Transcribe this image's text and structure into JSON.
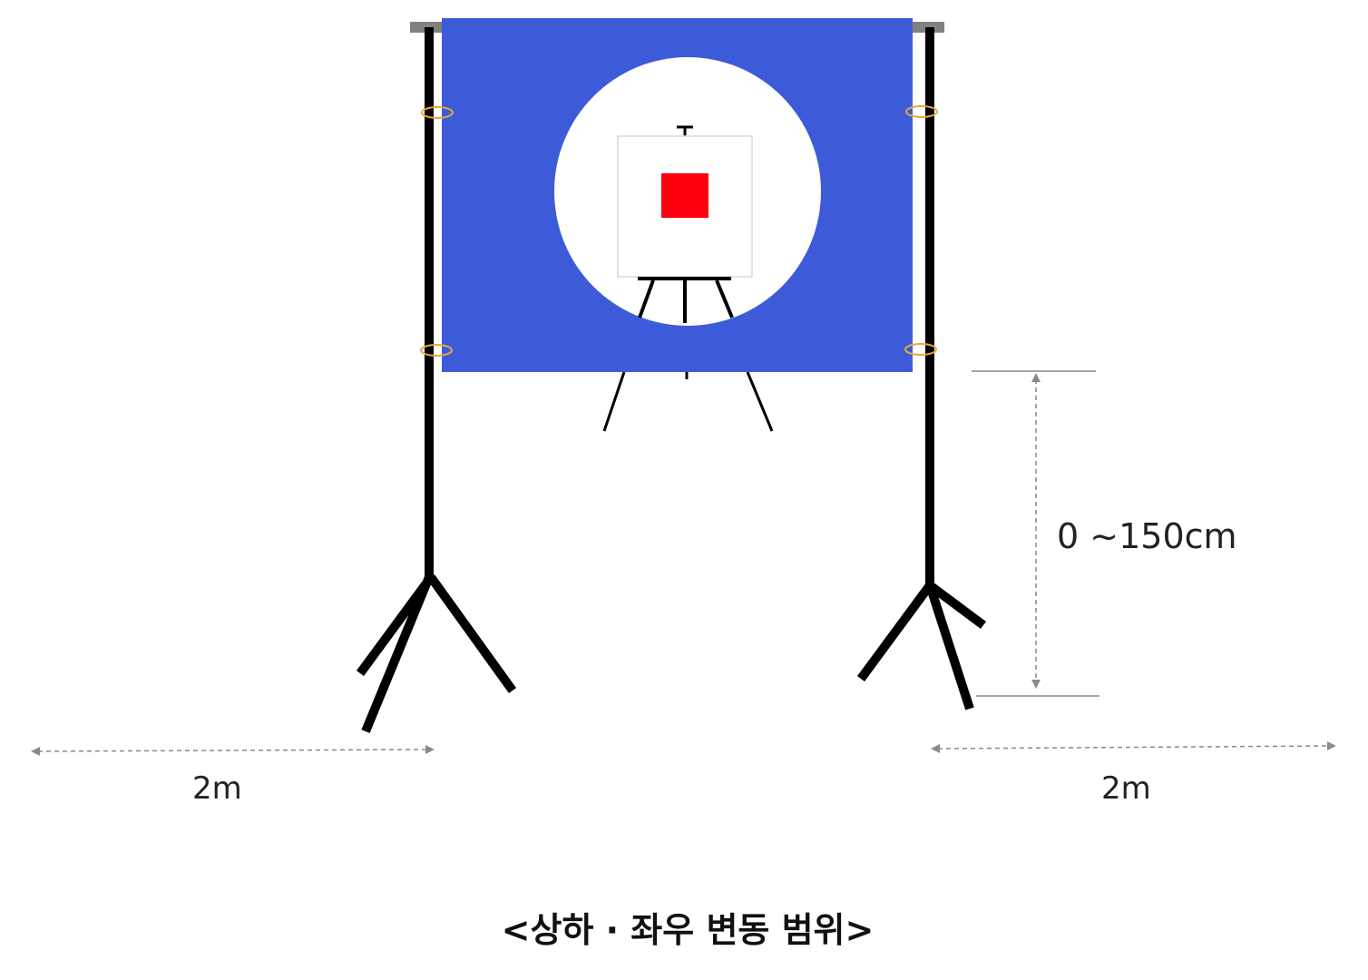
{
  "labels": {
    "vertical_range": "0 ~150cm",
    "left_range": "2m",
    "right_range": "2m"
  },
  "caption": "<상하 · 좌우 변동 범위>",
  "colors": {
    "backdrop": "#3d5bd9",
    "target": "#ff0010",
    "stand": "#000000",
    "crossbar": "#808080",
    "clip": "#e8a838",
    "dimension": "#8a8a8a"
  }
}
